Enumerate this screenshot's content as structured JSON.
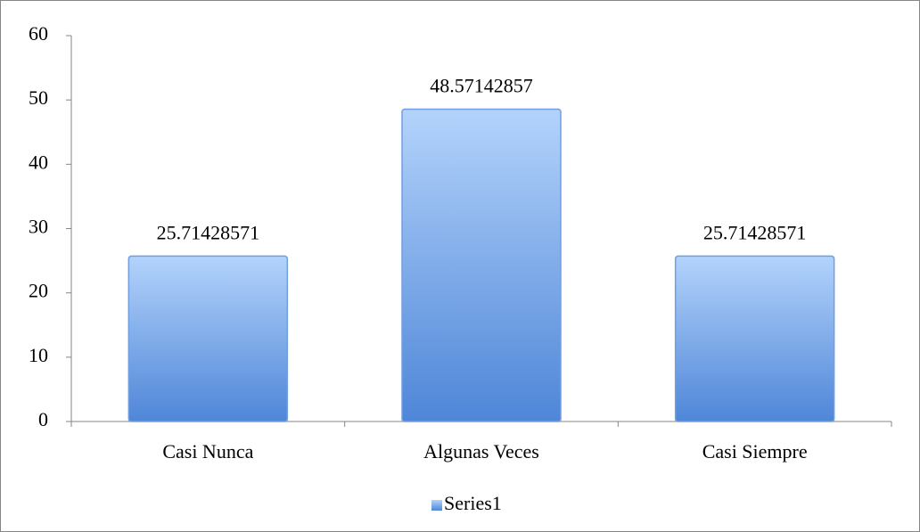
{
  "chart_data": {
    "type": "bar",
    "categories": [
      "Casi Nunca",
      "Algunas Veces",
      "Casi Siempre"
    ],
    "series": [
      {
        "name": "Series1",
        "color": "#4f86d8",
        "values": [
          25.71428571,
          48.57142857,
          25.71428571
        ]
      }
    ],
    "ylim": [
      0,
      60
    ],
    "yticks": [
      0,
      10,
      20,
      30,
      40,
      50,
      60
    ],
    "grid": false,
    "legend": "bottom"
  }
}
